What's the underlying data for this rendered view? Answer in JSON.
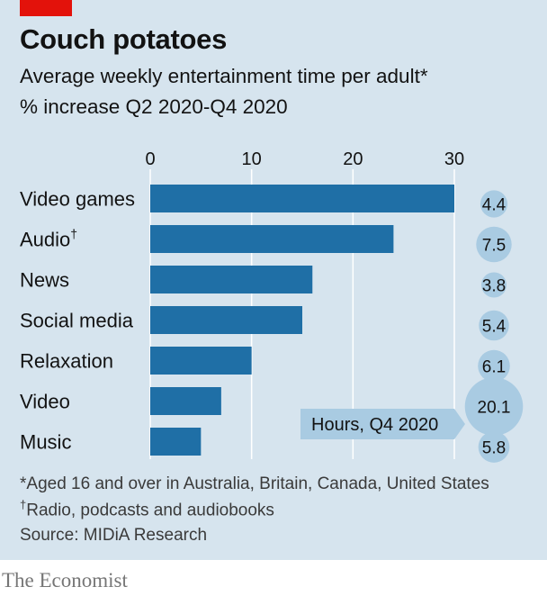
{
  "header": {
    "title": "Couch potatoes",
    "subtitle": "Average weekly entertainment time per adult*",
    "measure": "% increase Q2 2020-Q4 2020"
  },
  "footnotes": {
    "note1": "*Aged 16 and over in Australia, Britain, Canada, United States",
    "note2_mark": "†",
    "note2": "Radio, podcasts and audiobooks",
    "source": "Source: MIDiA Research"
  },
  "brand": "The Economist",
  "colors": {
    "bar": "#1f6fa6",
    "bubble": "#a9cbe2",
    "background": "#d6e4ee",
    "accent": "#e3120b"
  },
  "chart_data": {
    "type": "bar",
    "orientation": "horizontal",
    "categories": [
      "Video games",
      "Audio",
      "News",
      "Social media",
      "Relaxation",
      "Video",
      "Music"
    ],
    "category_marks": [
      "",
      "†",
      "",
      "",
      "",
      "",
      ""
    ],
    "values": [
      30,
      24,
      16,
      15,
      10,
      7,
      5
    ],
    "xlim": [
      0,
      30
    ],
    "xticks": [
      0,
      10,
      20,
      30
    ],
    "grid": true,
    "bubbles": {
      "label": "Hours, Q4 2020",
      "values": [
        4.4,
        7.5,
        3.8,
        5.4,
        6.1,
        20.1,
        5.8
      ]
    }
  }
}
